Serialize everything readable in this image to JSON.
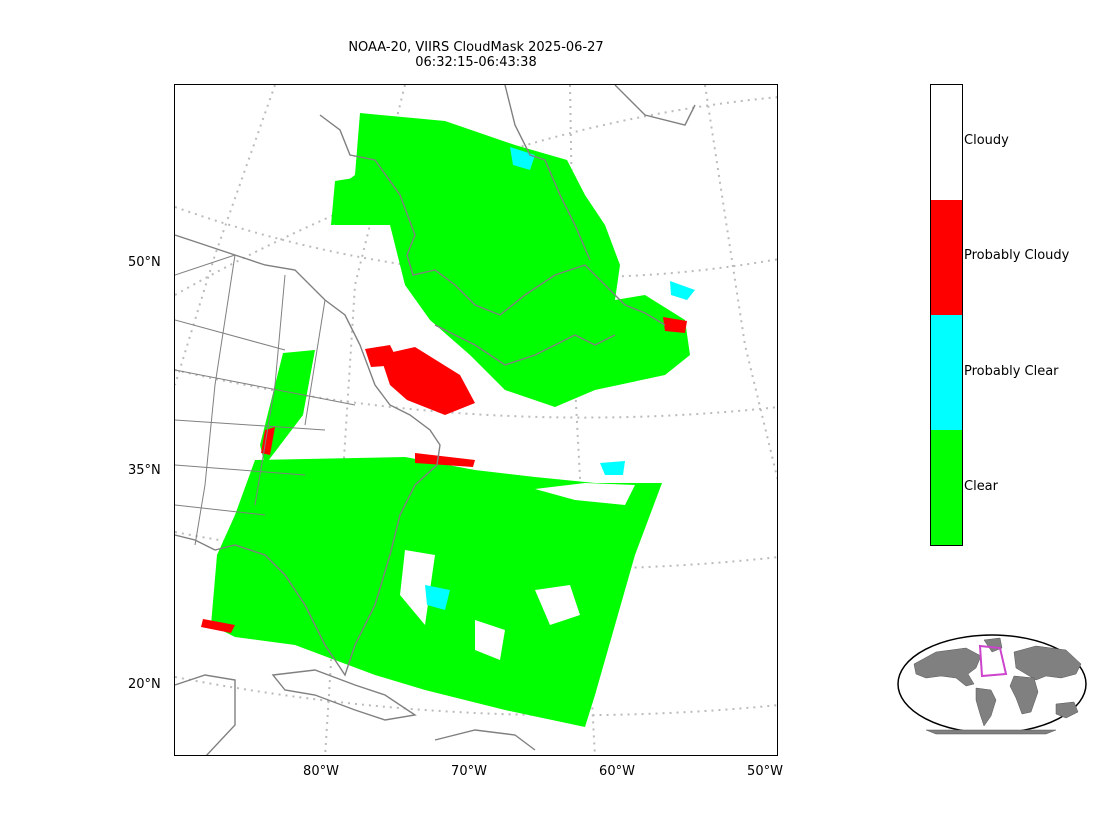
{
  "title": {
    "line1": "NOAA-20, VIIRS CloudMask 2025-06-27",
    "line2": "06:32:15-06:43:38"
  },
  "map": {
    "lat_labels": [
      "50°N",
      "35°N",
      "20°N"
    ],
    "lon_labels": [
      "80°W",
      "70°W",
      "60°W",
      "50°W"
    ],
    "gridlines": "dotted",
    "coastline_color": "#808080"
  },
  "legend": {
    "categories": [
      {
        "label": "Cloudy",
        "color": "#ffffff"
      },
      {
        "label": "Probably Cloudy",
        "color": "#ff0000"
      },
      {
        "label": "Probably Clear",
        "color": "#00ffff"
      },
      {
        "label": "Clear",
        "color": "#00ff00"
      }
    ]
  },
  "inset": {
    "land_color": "#808080",
    "highlight_color": "#cc44cc"
  }
}
